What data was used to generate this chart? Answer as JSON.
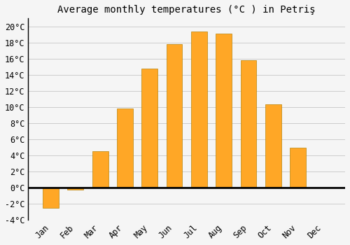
{
  "title": "Average monthly temperatures (°C ) in Petriş",
  "months": [
    "Jan",
    "Feb",
    "Mar",
    "Apr",
    "May",
    "Jun",
    "Jul",
    "Aug",
    "Sep",
    "Oct",
    "Nov",
    "Dec"
  ],
  "values": [
    -2.5,
    -0.3,
    4.5,
    9.8,
    14.8,
    17.8,
    19.4,
    19.1,
    15.8,
    10.3,
    4.9,
    0.0
  ],
  "bar_color": "#FFA726",
  "bar_edge_color": "#B8860B",
  "background_color": "#f5f5f5",
  "plot_bg_color": "#f5f5f5",
  "grid_color": "#cccccc",
  "ylim": [
    -4,
    21
  ],
  "yticks": [
    -4,
    -2,
    0,
    2,
    4,
    6,
    8,
    10,
    12,
    14,
    16,
    18,
    20
  ],
  "zero_line_color": "#000000",
  "left_spine_color": "#000000",
  "title_fontsize": 10,
  "tick_fontsize": 8.5
}
